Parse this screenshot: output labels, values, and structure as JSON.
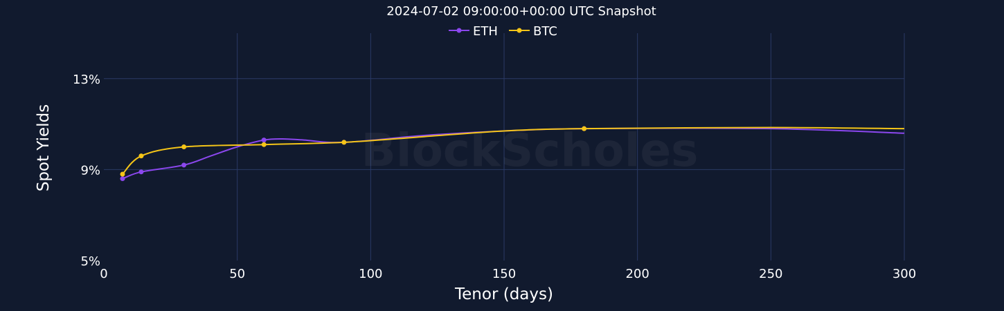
{
  "chart_data": {
    "type": "line",
    "title": "2024-07-02 09:00:00+00:00 UTC Snapshot",
    "xlabel": "Tenor (days)",
    "ylabel": "Spot Yields",
    "xlim": [
      0,
      300
    ],
    "ylim": [
      5,
      15
    ],
    "x_ticks": [
      0,
      50,
      100,
      150,
      200,
      250,
      300
    ],
    "x_tick_labels": [
      "0",
      "50",
      "100",
      "150",
      "200",
      "250",
      "300"
    ],
    "y_ticks": [
      5,
      9,
      13
    ],
    "y_tick_labels": [
      "5%",
      "9%",
      "13%"
    ],
    "grid": true,
    "legend_position": "top-center",
    "watermark": "BlockScholes",
    "background_color": "#111a2e",
    "series": [
      {
        "name": "ETH",
        "color": "#8b47ee",
        "x": [
          7,
          14,
          30,
          60,
          90,
          180
        ],
        "y": [
          8.6,
          8.9,
          9.2,
          10.3,
          10.2,
          10.8
        ],
        "curve_x": [
          7,
          14,
          30,
          40,
          50,
          60,
          67,
          75,
          90,
          120,
          150,
          180,
          250,
          300
        ],
        "curve_y": [
          8.6,
          8.9,
          9.2,
          9.6,
          10.0,
          10.3,
          10.35,
          10.3,
          10.2,
          10.5,
          10.7,
          10.8,
          10.8,
          10.6
        ]
      },
      {
        "name": "BTC",
        "color": "#f5c518",
        "x": [
          7,
          14,
          30,
          60,
          90,
          180
        ],
        "y": [
          8.8,
          9.6,
          10.0,
          10.1,
          10.2,
          10.8
        ],
        "curve_x": [
          7,
          14,
          30,
          60,
          90,
          120,
          150,
          180,
          250,
          300
        ],
        "curve_y": [
          8.8,
          9.6,
          10.0,
          10.1,
          10.2,
          10.45,
          10.7,
          10.8,
          10.85,
          10.8
        ]
      }
    ]
  }
}
